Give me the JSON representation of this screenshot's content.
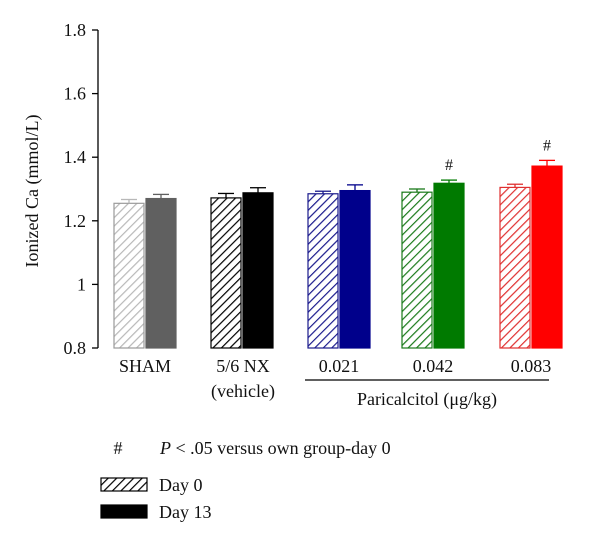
{
  "chart_data": {
    "type": "bar",
    "ylabel": "Ionized Ca (mmol/L)",
    "ylim": [
      0.8,
      1.8
    ],
    "yticks": [
      "0.8",
      "1",
      "1.2",
      "1.4",
      "1.6",
      "1.8"
    ],
    "groups": [
      {
        "label_lines": [
          "SHAM"
        ],
        "colors": [
          "#b8b8b8",
          "#606060"
        ]
      },
      {
        "label_lines": [
          "5/6 NX",
          "(vehicle)"
        ],
        "colors": [
          "#000000",
          "#000000"
        ]
      },
      {
        "label_lines": [
          "0.021"
        ],
        "colors": [
          "#1a1a8c",
          "#00008b"
        ]
      },
      {
        "label_lines": [
          "0.042"
        ],
        "colors": [
          "#1a7a1a",
          "#007a00"
        ]
      },
      {
        "label_lines": [
          "0.083"
        ],
        "colors": [
          "#e03030",
          "#ff0000"
        ]
      }
    ],
    "series": [
      {
        "name": "Day 0",
        "pattern": "hatched",
        "values": [
          1.255,
          1.272,
          1.285,
          1.29,
          1.305
        ],
        "errors": [
          0.012,
          0.014,
          0.008,
          0.01,
          0.01
        ]
      },
      {
        "name": "Day 13",
        "pattern": "solid",
        "values": [
          1.27,
          1.288,
          1.295,
          1.318,
          1.372
        ],
        "errors": [
          0.013,
          0.016,
          0.018,
          0.01,
          0.018
        ]
      }
    ],
    "significance": [
      {
        "group": 3,
        "series": 1,
        "marker": "#"
      },
      {
        "group": 4,
        "series": 1,
        "marker": "#"
      }
    ],
    "bracket_label": "Paricalcitol (μg/kg)",
    "bracket_groups": [
      2,
      4
    ]
  },
  "legend": {
    "note_symbol": "#",
    "note_p": "P",
    "note_rest": " < .05 versus own group-day 0",
    "items": [
      {
        "label": "Day 0",
        "pattern": "hatched"
      },
      {
        "label": "Day 13",
        "pattern": "solid"
      }
    ]
  }
}
